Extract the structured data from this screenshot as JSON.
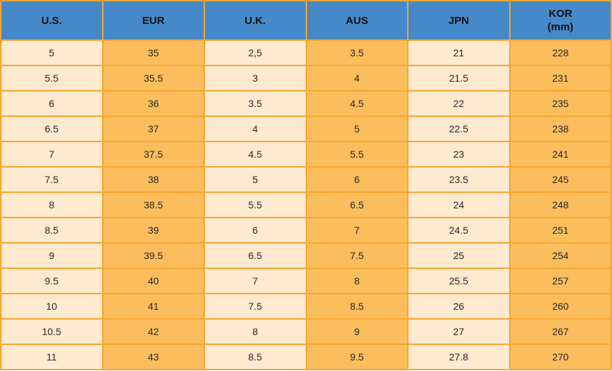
{
  "chart_data": {
    "type": "table",
    "column_keys": [
      "us",
      "eur",
      "uk",
      "aus",
      "jpn",
      "kor"
    ],
    "columns": [
      "U.S.",
      "EUR",
      "U.K.",
      "AUS",
      "JPN",
      "KOR (mm)"
    ],
    "header_lines": [
      [
        "U.S."
      ],
      [
        "EUR"
      ],
      [
        "U.K."
      ],
      [
        "AUS"
      ],
      [
        "JPN"
      ],
      [
        "KOR",
        "(mm)"
      ]
    ],
    "rows": [
      [
        "5",
        "35",
        "2,5",
        "3.5",
        "21",
        "228"
      ],
      [
        "5.5",
        "35.5",
        "3",
        "4",
        "21.5",
        "231"
      ],
      [
        "6",
        "36",
        "3.5",
        "4.5",
        "22",
        "235"
      ],
      [
        "6.5",
        "37",
        "4",
        "5",
        "22.5",
        "238"
      ],
      [
        "7",
        "37.5",
        "4.5",
        "5.5",
        "23",
        "241"
      ],
      [
        "7.5",
        "38",
        "5",
        "6",
        "23.5",
        "245"
      ],
      [
        "8",
        "38.5",
        "5.5",
        "6.5",
        "24",
        "248"
      ],
      [
        "8.5",
        "39",
        "6",
        "7",
        "24.5",
        "251"
      ],
      [
        "9",
        "39.5",
        "6.5",
        "7.5",
        "25",
        "254"
      ],
      [
        "9.5",
        "40",
        "7",
        "8",
        "25.5",
        "257"
      ],
      [
        "10",
        "41",
        "7.5",
        "8.5",
        "26",
        "260"
      ],
      [
        "10.5",
        "42",
        "8",
        "9",
        "27",
        "267"
      ],
      [
        "11",
        "43",
        "8.5",
        "9.5",
        "27.8",
        "270"
      ]
    ]
  },
  "style": {
    "header_bg": "#4689c8",
    "border": "#f5a62f",
    "cell_orange": "#fcbd5d",
    "cell_cream": "#fdeacf",
    "header_text": "#111111",
    "body_text": "#272727"
  }
}
